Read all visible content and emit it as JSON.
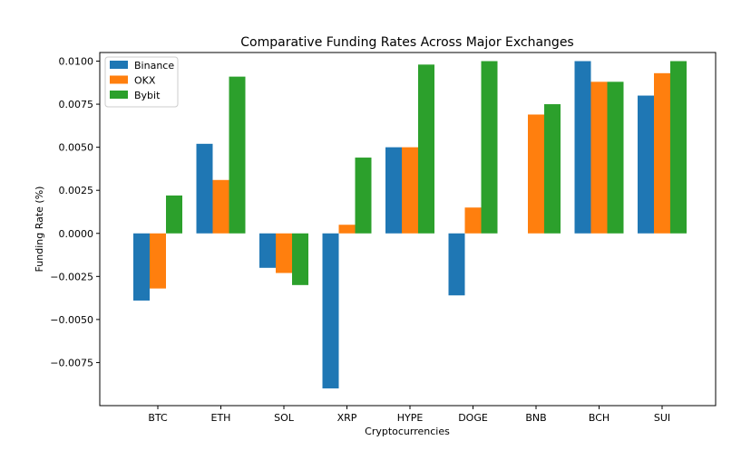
{
  "chart_data": {
    "type": "bar",
    "title": "Comparative Funding Rates Across Major Exchanges",
    "xlabel": "Cryptocurrencies",
    "ylabel": "Funding Rate (%)",
    "categories": [
      "BTC",
      "ETH",
      "SOL",
      "XRP",
      "HYPE",
      "DOGE",
      "BNB",
      "BCH",
      "SUI"
    ],
    "series": [
      {
        "name": "Binance",
        "color": "#1f77b4",
        "values": [
          -0.0039,
          0.0052,
          -0.002,
          -0.009,
          0.005,
          -0.0036,
          0.0,
          0.01,
          0.008
        ]
      },
      {
        "name": "OKX",
        "color": "#ff7f0e",
        "values": [
          -0.0032,
          0.0031,
          -0.0023,
          0.0005,
          0.005,
          0.0015,
          0.0069,
          0.0088,
          0.0093
        ]
      },
      {
        "name": "Bybit",
        "color": "#2ca02c",
        "values": [
          0.0022,
          0.0091,
          -0.003,
          0.0044,
          0.0098,
          0.01,
          0.0075,
          0.0088,
          0.01
        ]
      }
    ],
    "yticks": [
      -0.0075,
      -0.005,
      -0.0025,
      0.0,
      0.0025,
      0.005,
      0.0075,
      0.01
    ],
    "ytick_labels": [
      "−0.0075",
      "−0.0050",
      "−0.0025",
      "0.0000",
      "0.0025",
      "0.0050",
      "0.0075",
      "0.0100"
    ],
    "ylim": [
      -0.01,
      0.0105
    ],
    "grid": false,
    "legend_position": "top-left"
  }
}
